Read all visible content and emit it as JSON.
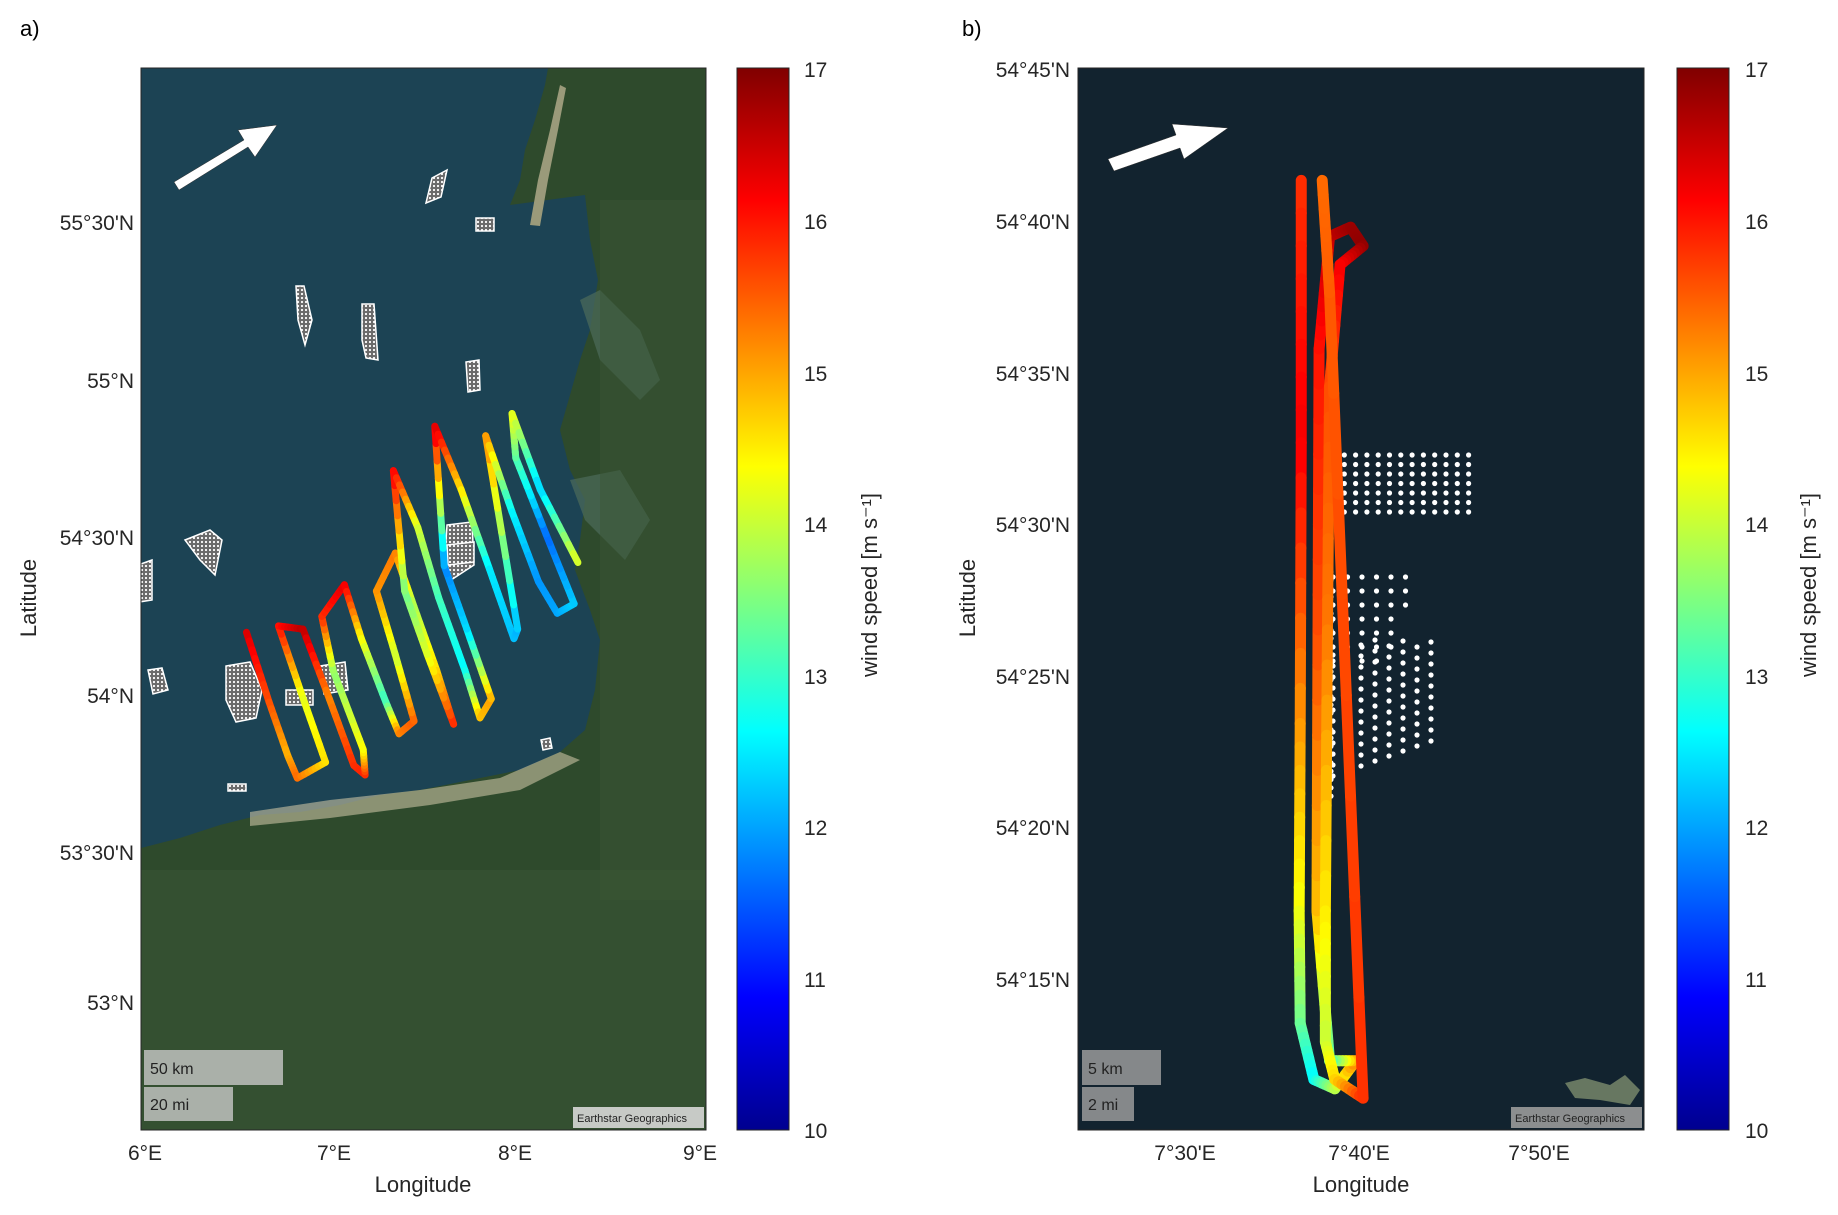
{
  "panels": [
    {
      "label": "a)",
      "xlabel": "Longitude",
      "ylabel": "Latitude",
      "x_ticks": [
        "6°E",
        "7°E",
        "8°E",
        "9°E"
      ],
      "y_ticks": [
        "55°30'N",
        "55°N",
        "54°30'N",
        "54°N",
        "53°30'N",
        "53°N"
      ],
      "scalebar_km": "50 km",
      "scalebar_mi": "20 mi",
      "attribution": "Earthstar Geographics",
      "colorbar_ticks": [
        "17",
        "16",
        "15",
        "14",
        "13",
        "12",
        "11",
        "10"
      ],
      "colorbar_label": "wind speed [m s⁻¹]",
      "basemap": "satellite imagery (sea dark blue, land green)",
      "arrow_icon": "wind-direction-arrow"
    },
    {
      "label": "b)",
      "xlabel": "Longitude",
      "ylabel": "Latitude",
      "x_ticks": [
        "7°30'E",
        "7°40'E",
        "7°50'E"
      ],
      "y_ticks": [
        "54°45'N",
        "54°40'N",
        "54°35'N",
        "54°30'N",
        "54°25'N",
        "54°20'N",
        "54°15'N"
      ],
      "scalebar_km": "5 km",
      "scalebar_mi": "2 mi",
      "attribution": "Earthstar Geographics",
      "colorbar_ticks": [
        "17",
        "16",
        "15",
        "14",
        "13",
        "12",
        "11",
        "10"
      ],
      "colorbar_label": "wind speed [m s⁻¹]",
      "basemap": "satellite imagery (open sea)",
      "arrow_icon": "wind-direction-arrow"
    }
  ],
  "chart_data": [
    {
      "type": "scatter",
      "description_series": "flight track colored by wind speed",
      "xlim": [
        6.0,
        9.0
      ],
      "ylim": [
        52.6,
        55.95
      ],
      "color_range": [
        10,
        17
      ],
      "track_points": [
        {
          "lon": 6.56,
          "lat": 54.17,
          "ws": 16.4
        },
        {
          "lon": 6.68,
          "lat": 53.95,
          "ws": 15.6
        },
        {
          "lon": 6.78,
          "lat": 53.78,
          "ws": 14.9
        },
        {
          "lon": 6.83,
          "lat": 53.71,
          "ws": 15.4
        },
        {
          "lon": 6.98,
          "lat": 53.76,
          "ws": 14.6
        },
        {
          "lon": 6.85,
          "lat": 53.98,
          "ws": 14.2
        },
        {
          "lon": 6.73,
          "lat": 54.19,
          "ws": 16.0
        },
        {
          "lon": 6.86,
          "lat": 54.18,
          "ws": 16.6
        },
        {
          "lon": 7.0,
          "lat": 53.96,
          "ws": 15.2
        },
        {
          "lon": 7.13,
          "lat": 53.75,
          "ws": 15.8
        },
        {
          "lon": 7.19,
          "lat": 53.72,
          "ws": 15.9
        },
        {
          "lon": 7.18,
          "lat": 53.8,
          "ws": 14.4
        },
        {
          "lon": 7.02,
          "lat": 54.05,
          "ws": 13.6
        },
        {
          "lon": 6.96,
          "lat": 54.22,
          "ws": 15.8
        },
        {
          "lon": 7.08,
          "lat": 54.32,
          "ws": 16.3
        },
        {
          "lon": 7.17,
          "lat": 54.15,
          "ws": 14.4
        },
        {
          "lon": 7.3,
          "lat": 53.95,
          "ws": 13.0
        },
        {
          "lon": 7.37,
          "lat": 53.85,
          "ws": 15.2
        },
        {
          "lon": 7.45,
          "lat": 53.89,
          "ws": 15.5
        },
        {
          "lon": 7.35,
          "lat": 54.1,
          "ws": 14.0
        },
        {
          "lon": 7.25,
          "lat": 54.3,
          "ws": 15.1
        },
        {
          "lon": 7.35,
          "lat": 54.42,
          "ws": 15.3
        },
        {
          "lon": 7.45,
          "lat": 54.25,
          "ws": 13.8
        },
        {
          "lon": 7.57,
          "lat": 54.05,
          "ws": 14.6
        },
        {
          "lon": 7.66,
          "lat": 53.88,
          "ws": 15.9
        },
        {
          "lon": 7.52,
          "lat": 54.1,
          "ws": 14.2
        },
        {
          "lon": 7.4,
          "lat": 54.3,
          "ws": 13.4
        },
        {
          "lon": 7.34,
          "lat": 54.68,
          "ws": 16.2
        },
        {
          "lon": 7.47,
          "lat": 54.5,
          "ws": 14.1
        },
        {
          "lon": 7.58,
          "lat": 54.28,
          "ws": 13.1
        },
        {
          "lon": 7.72,
          "lat": 54.05,
          "ws": 12.6
        },
        {
          "lon": 7.8,
          "lat": 53.9,
          "ws": 14.8
        },
        {
          "lon": 7.86,
          "lat": 53.96,
          "ws": 15.0
        },
        {
          "lon": 7.73,
          "lat": 54.18,
          "ws": 12.4
        },
        {
          "lon": 7.61,
          "lat": 54.38,
          "ws": 11.8
        },
        {
          "lon": 7.56,
          "lat": 54.82,
          "ws": 16.4
        },
        {
          "lon": 7.7,
          "lat": 54.62,
          "ws": 14.6
        },
        {
          "lon": 7.85,
          "lat": 54.37,
          "ws": 12.5
        },
        {
          "lon": 7.98,
          "lat": 54.15,
          "ws": 12.2
        },
        {
          "lon": 8.0,
          "lat": 54.18,
          "ws": 12.1
        },
        {
          "lon": 7.83,
          "lat": 54.79,
          "ws": 15.2
        },
        {
          "lon": 7.97,
          "lat": 54.55,
          "ws": 12.6
        },
        {
          "lon": 8.11,
          "lat": 54.33,
          "ws": 11.9
        },
        {
          "lon": 8.21,
          "lat": 54.23,
          "ws": 12.0
        },
        {
          "lon": 8.3,
          "lat": 54.26,
          "ws": 12.3
        },
        {
          "lon": 8.15,
          "lat": 54.48,
          "ws": 11.6
        },
        {
          "lon": 7.99,
          "lat": 54.72,
          "ws": 13.2
        },
        {
          "lon": 7.97,
          "lat": 54.86,
          "ws": 14.3
        },
        {
          "lon": 8.12,
          "lat": 54.62,
          "ws": 12.3
        },
        {
          "lon": 8.32,
          "lat": 54.39,
          "ws": 14.2
        }
      ]
    },
    {
      "type": "scatter",
      "description_series": "flight track colored by wind speed",
      "xlim": [
        7.4,
        7.94
      ],
      "ylim": [
        54.183,
        54.75
      ],
      "color_range": [
        10,
        17
      ],
      "track_points": [
        {
          "lon": 7.613,
          "lat": 54.69,
          "ws": 15.8
        },
        {
          "lon": 7.613,
          "lat": 54.55,
          "ws": 16.2
        },
        {
          "lon": 7.612,
          "lat": 54.4,
          "ws": 15.1
        },
        {
          "lon": 7.611,
          "lat": 54.3,
          "ws": 14.3
        },
        {
          "lon": 7.612,
          "lat": 54.24,
          "ws": 13.4
        },
        {
          "lon": 7.625,
          "lat": 54.21,
          "ws": 12.6
        },
        {
          "lon": 7.645,
          "lat": 54.205,
          "ws": 13.8
        },
        {
          "lon": 7.665,
          "lat": 54.22,
          "ws": 15.2
        },
        {
          "lon": 7.64,
          "lat": 54.22,
          "ws": 13.2
        },
        {
          "lon": 7.628,
          "lat": 54.3,
          "ws": 14.8
        },
        {
          "lon": 7.629,
          "lat": 54.45,
          "ws": 15.6
        },
        {
          "lon": 7.63,
          "lat": 54.6,
          "ws": 16.0
        },
        {
          "lon": 7.64,
          "lat": 54.66,
          "ws": 16.5
        },
        {
          "lon": 7.66,
          "lat": 54.665,
          "ws": 16.8
        },
        {
          "lon": 7.672,
          "lat": 54.655,
          "ws": 16.9
        },
        {
          "lon": 7.65,
          "lat": 54.645,
          "ws": 16.2
        },
        {
          "lon": 7.64,
          "lat": 54.58,
          "ws": 15.6
        },
        {
          "lon": 7.638,
          "lat": 54.45,
          "ws": 15.3
        },
        {
          "lon": 7.636,
          "lat": 54.3,
          "ws": 14.5
        },
        {
          "lon": 7.636,
          "lat": 54.23,
          "ws": 14.0
        },
        {
          "lon": 7.645,
          "lat": 54.21,
          "ws": 14.6
        },
        {
          "lon": 7.672,
          "lat": 54.2,
          "ws": 15.8
        },
        {
          "lon": 7.64,
          "lat": 54.63,
          "ws": 15.5
        },
        {
          "lon": 7.633,
          "lat": 54.69,
          "ws": 15.4
        }
      ]
    }
  ]
}
